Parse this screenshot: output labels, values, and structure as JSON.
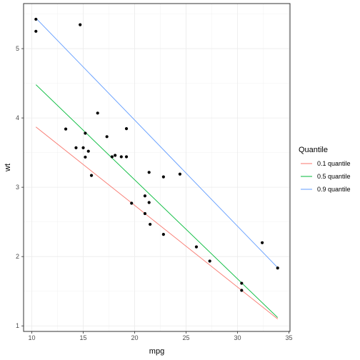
{
  "chart_data": {
    "type": "scatter",
    "title": "",
    "xlabel": "mpg",
    "ylabel": "wt",
    "xlim": [
      9.2,
      35.1
    ],
    "ylim": [
      0.92,
      5.65
    ],
    "x_ticks": [
      10,
      15,
      20,
      25,
      30,
      35
    ],
    "x_tick_labels": [
      "10",
      "15",
      "20",
      "25",
      "30",
      "35"
    ],
    "y_ticks": [
      1,
      2,
      3,
      4,
      5
    ],
    "y_tick_labels": [
      "1",
      "2",
      "3",
      "4",
      "5"
    ],
    "grid": true,
    "points": {
      "x": [
        21.0,
        21.0,
        22.8,
        21.4,
        18.7,
        18.1,
        14.3,
        24.4,
        22.8,
        19.2,
        17.8,
        16.4,
        17.3,
        15.2,
        10.4,
        10.4,
        14.7,
        32.4,
        30.4,
        33.9,
        21.5,
        15.5,
        15.2,
        13.3,
        19.2,
        27.3,
        26.0,
        30.4,
        15.8,
        19.7,
        15.0,
        21.4
      ],
      "y": [
        2.62,
        2.875,
        2.32,
        3.215,
        3.44,
        3.46,
        3.57,
        3.19,
        3.15,
        3.44,
        3.44,
        4.07,
        3.73,
        3.78,
        5.25,
        5.424,
        5.345,
        2.2,
        1.615,
        1.835,
        2.465,
        3.52,
        3.435,
        3.84,
        3.845,
        1.935,
        2.14,
        1.513,
        3.17,
        2.77,
        3.57,
        2.78
      ],
      "color": "#000000"
    },
    "legend": {
      "title": "Quantile",
      "position": "right"
    },
    "series": [
      {
        "name": "0.1 quantile",
        "color": "#F8766D",
        "x": [
          10.4,
          33.9
        ],
        "y": [
          3.87,
          1.1
        ]
      },
      {
        "name": "0.5 quantile",
        "color": "#00BA38",
        "x": [
          10.4,
          33.9
        ],
        "y": [
          4.48,
          1.12
        ]
      },
      {
        "name": "0.9 quantile",
        "color": "#619CFF",
        "x": [
          10.4,
          33.9
        ],
        "y": [
          5.44,
          1.84
        ]
      }
    ]
  }
}
